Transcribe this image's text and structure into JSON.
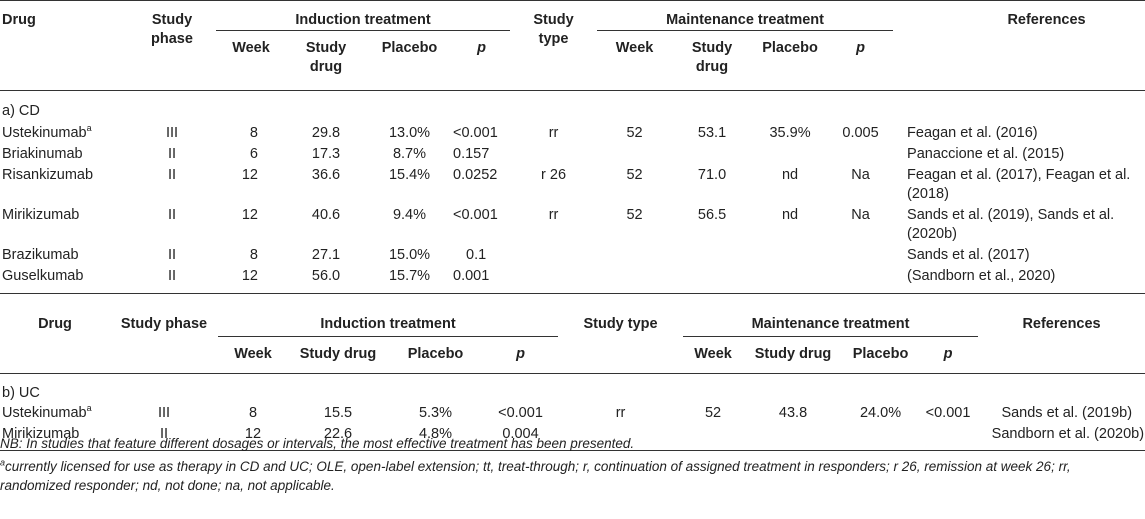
{
  "table1": {
    "headers": {
      "drug": "Drug",
      "study_phase_l1": "Study",
      "study_phase_l2": "phase",
      "induction": "Induction treatment",
      "study_type_l1": "Study",
      "study_type_l2": "type",
      "maintenance": "Maintenance treatment",
      "references": "References",
      "week": "Week",
      "study_drug_l1": "Study",
      "study_drug_l2": "drug",
      "placebo": "Placebo",
      "p": "p"
    },
    "section": "a) CD",
    "rows": [
      {
        "drug": "Ustekinumab",
        "sup": "a",
        "phase": "III",
        "ind_week": "8",
        "ind_drug": "29.8",
        "ind_placebo": "13.0%",
        "ind_p": "<0.001",
        "type": "rr",
        "mt_week": "52",
        "mt_drug": "53.1",
        "mt_placebo": "35.9%",
        "mt_p": "0.005",
        "ref1": "Feagan et al. (2016)",
        "ref2": ""
      },
      {
        "drug": "Briakinumab",
        "sup": "",
        "phase": "II",
        "ind_week": "6",
        "ind_drug": "17.3",
        "ind_placebo": "8.7%",
        "ind_p": "0.157",
        "type": "",
        "mt_week": "",
        "mt_drug": "",
        "mt_placebo": "",
        "mt_p": "",
        "ref1": "Panaccione et al. (2015)",
        "ref2": ""
      },
      {
        "drug": "Risankizumab",
        "sup": "",
        "phase": "II",
        "ind_week": "12",
        "ind_drug": "36.6",
        "ind_placebo": "15.4%",
        "ind_p": "0.0252",
        "type": "r 26",
        "mt_week": "52",
        "mt_drug": "71.0",
        "mt_placebo": "nd",
        "mt_p": "Na",
        "ref1": "Feagan et al. (2017), Feagan et al.",
        "ref2": "(2018)"
      },
      {
        "drug": "Mirikizumab",
        "sup": "",
        "phase": "II",
        "ind_week": "12",
        "ind_drug": "40.6",
        "ind_placebo": "9.4%",
        "ind_p": "<0.001",
        "type": "rr",
        "mt_week": "52",
        "mt_drug": "56.5",
        "mt_placebo": "nd",
        "mt_p": "Na",
        "ref1": "Sands et al. (2019), Sands et al.",
        "ref2": "(2020b)"
      },
      {
        "drug": "Brazikumab",
        "sup": "",
        "phase": "II",
        "ind_week": "8",
        "ind_drug": "27.1",
        "ind_placebo": "15.0%",
        "ind_p": "0.1",
        "type": "",
        "mt_week": "",
        "mt_drug": "",
        "mt_placebo": "",
        "mt_p": "",
        "ref1": "Sands et al. (2017)",
        "ref2": ""
      },
      {
        "drug": "Guselkumab",
        "sup": "",
        "phase": "II",
        "ind_week": "12",
        "ind_drug": "56.0",
        "ind_placebo": "15.7%",
        "ind_p": "0.001",
        "type": "",
        "mt_week": "",
        "mt_drug": "",
        "mt_placebo": "",
        "mt_p": "",
        "ref1": "(Sandborn et al., 2020)",
        "ref2": ""
      }
    ]
  },
  "table2": {
    "headers": {
      "drug": "Drug",
      "study_phase": "Study phase",
      "induction": "Induction treatment",
      "study_type": "Study type",
      "maintenance": "Maintenance treatment",
      "references": "References",
      "week": "Week",
      "study_drug": "Study drug",
      "placebo": "Placebo",
      "p": "p"
    },
    "section": "b) UC",
    "rows": [
      {
        "drug": "Ustekinumab",
        "sup": "a",
        "phase": "III",
        "ind_week": "8",
        "ind_drug": "15.5",
        "ind_placebo": "5.3%",
        "ind_p": "<0.001",
        "type": "rr",
        "mt_week": "52",
        "mt_drug": "43.8",
        "mt_placebo": "24.0%",
        "mt_p": "<0.001",
        "ref": "Sands et al. (2019b)"
      },
      {
        "drug": "Mirikizumab",
        "sup": "",
        "phase": "II",
        "ind_week": "12",
        "ind_drug": "22.6",
        "ind_placebo": "4.8%",
        "ind_p": "0.004",
        "type": "",
        "mt_week": "",
        "mt_drug": "",
        "mt_placebo": "",
        "mt_p": "",
        "ref": "Sandborn et al. (2020b)"
      }
    ]
  },
  "notes": {
    "nb": "NB: In studies that feature different dosages or intervals, the most effective treatment has been presented.",
    "footnote_sup": "a",
    "footnote": "currently licensed for use as therapy in CD and UC; OLE, open-label extension; tt, treat-through; r, continuation of assigned treatment in responders; r 26, remission at week 26; rr, randomized responder; nd, not done; na, not applicable."
  }
}
